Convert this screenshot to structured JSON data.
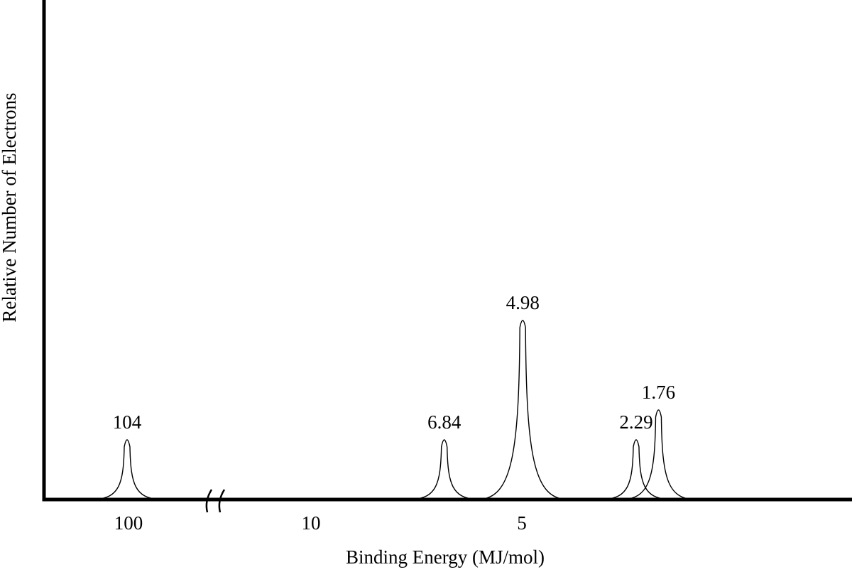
{
  "chart_data": {
    "type": "line",
    "xlabel": "Binding Energy (MJ/mol)",
    "ylabel": "Relative Number of Electrons",
    "x_direction": "decreasing",
    "x_axis_break": true,
    "x_ticks": [
      "100",
      "10",
      "5"
    ],
    "peaks": [
      {
        "energy": 104,
        "label": "104",
        "relative_height": 1
      },
      {
        "energy": 6.84,
        "label": "6.84",
        "relative_height": 1
      },
      {
        "energy": 4.98,
        "label": "4.98",
        "relative_height": 3
      },
      {
        "energy": 2.29,
        "label": "2.29",
        "relative_height": 1
      },
      {
        "energy": 1.76,
        "label": "1.76",
        "relative_height": 1.5
      }
    ],
    "grid": false,
    "legend": "none"
  }
}
